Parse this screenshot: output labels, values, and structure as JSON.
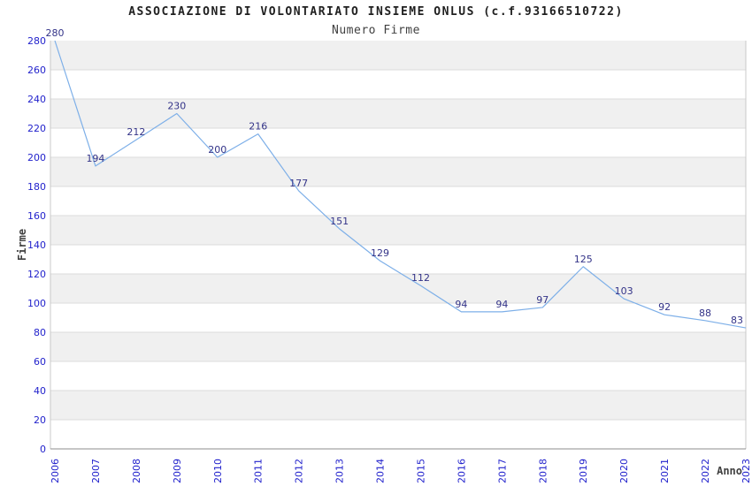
{
  "chart_data": {
    "type": "line",
    "title": "ASSOCIAZIONE DI VOLONTARIATO INSIEME ONLUS (c.f.93166510722)",
    "subtitle": "Numero Firme",
    "xlabel": "Anno",
    "ylabel": "Firme",
    "categories": [
      "2006",
      "2007",
      "2008",
      "2009",
      "2010",
      "2011",
      "2012",
      "2013",
      "2014",
      "2015",
      "2016",
      "2017",
      "2018",
      "2019",
      "2020",
      "2021",
      "2022",
      "2023"
    ],
    "values": [
      280,
      194,
      212,
      230,
      200,
      216,
      177,
      151,
      129,
      112,
      94,
      94,
      97,
      125,
      103,
      92,
      88,
      83
    ],
    "ylim": [
      0,
      280
    ],
    "ytick_step": 20,
    "grid": "horizontal-bands",
    "legend": null,
    "band_colors": [
      "#f0f0f0",
      "#ffffff"
    ],
    "colors": {
      "line": "#7DAFE8",
      "tick_label": "#2222CC",
      "value_label": "#333388",
      "title": "#1f1f1f",
      "subtitle": "#404040",
      "axis_title": "#404040",
      "gridline": "#DBDBDB",
      "bottom_axis": "#8C8C8C",
      "side_border": "#C9C9C9"
    }
  }
}
